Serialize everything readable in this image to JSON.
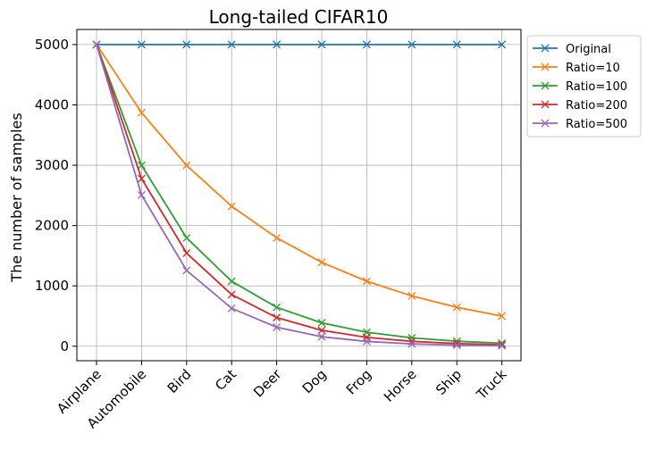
{
  "chart_data": {
    "type": "line",
    "title": "Long-tailed CIFAR10",
    "xlabel": "",
    "ylabel": "The number of samples",
    "categories": [
      "Airplane",
      "Automobile",
      "Bird",
      "Cat",
      "Deer",
      "Dog",
      "Frog",
      "Horse",
      "Ship",
      "Truck"
    ],
    "ylim": [
      -240,
      5250
    ],
    "yticks": [
      0,
      1000,
      2000,
      3000,
      4000,
      5000
    ],
    "grid": true,
    "legend_position": "outside-top-right",
    "marker": "x",
    "series": [
      {
        "name": "Original",
        "color": "#1f77b4",
        "values": [
          5000,
          5000,
          5000,
          5000,
          5000,
          5000,
          5000,
          5000,
          5000,
          5000
        ]
      },
      {
        "name": "Ratio=10",
        "color": "#ff7f0e",
        "values": [
          5000,
          3871,
          2997,
          2320,
          1796,
          1391,
          1077,
          834,
          645,
          500
        ]
      },
      {
        "name": "Ratio=100",
        "color": "#2ca02c",
        "values": [
          5000,
          2997,
          1796,
          1077,
          645,
          387,
          232,
          139,
          83,
          50
        ]
      },
      {
        "name": "Ratio=200",
        "color": "#d62728",
        "values": [
          5000,
          2777,
          1543,
          857,
          476,
          264,
          147,
          81,
          45,
          25
        ]
      },
      {
        "name": "Ratio=500",
        "color": "#9467bd",
        "values": [
          5000,
          2506,
          1256,
          629,
          315,
          158,
          79,
          39,
          19,
          10
        ]
      }
    ]
  }
}
